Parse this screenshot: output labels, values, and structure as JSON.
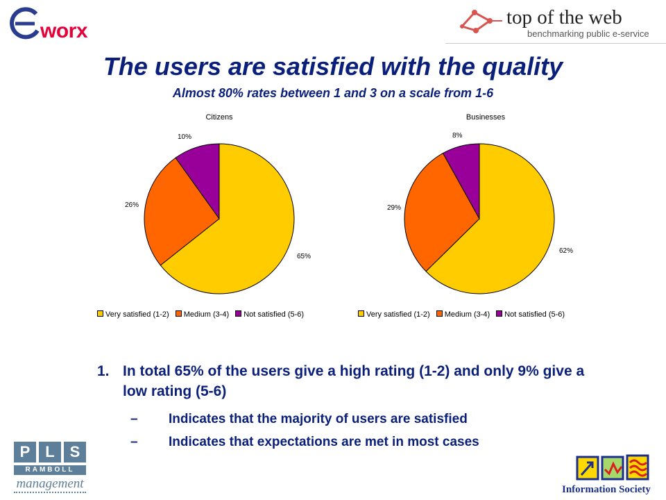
{
  "header": {
    "eworx_mark": "e",
    "eworx_word": "worx",
    "totw_title": "top of the web",
    "totw_sub": "benchmarking public e-service"
  },
  "title": "The users are satisfied with the quality",
  "subtitle": "Almost 80% rates between 1 and 3 on a scale from 1-6",
  "colors": {
    "very_satisfied": "#FFCC00",
    "medium": "#FF6600",
    "not_satisfied": "#990099",
    "title_blue": "#0a1f7a"
  },
  "chart_data": [
    {
      "type": "pie",
      "title": "Citizens",
      "categories": [
        "Very satisfied (1-2)",
        "Medium (3-4)",
        "Not satisfied (5-6)"
      ],
      "values": [
        65,
        26,
        10
      ],
      "labels": [
        "65%",
        "26%",
        "10%"
      ],
      "legend_position": "bottom"
    },
    {
      "type": "pie",
      "title": "Businesses",
      "categories": [
        "Very satisfied (1-2)",
        "Medium (3-4)",
        "Not satisfied (5-6)"
      ],
      "values": [
        62,
        29,
        8
      ],
      "labels": [
        "62%",
        "29%",
        "8%"
      ],
      "legend_position": "bottom"
    }
  ],
  "body": {
    "number": "1.",
    "main": "In total 65% of the users give a high rating (1-2) and only 9% give a low rating (5-6)",
    "dash": "–",
    "points": [
      "Indicates that the majority of users are satisfied",
      "Indicates that expectations are met in most cases"
    ]
  },
  "footer": {
    "pls_letters": [
      "P",
      "L",
      "S"
    ],
    "ramboll": "RAMBOLL",
    "management": "management",
    "info_society": "Information Society"
  }
}
